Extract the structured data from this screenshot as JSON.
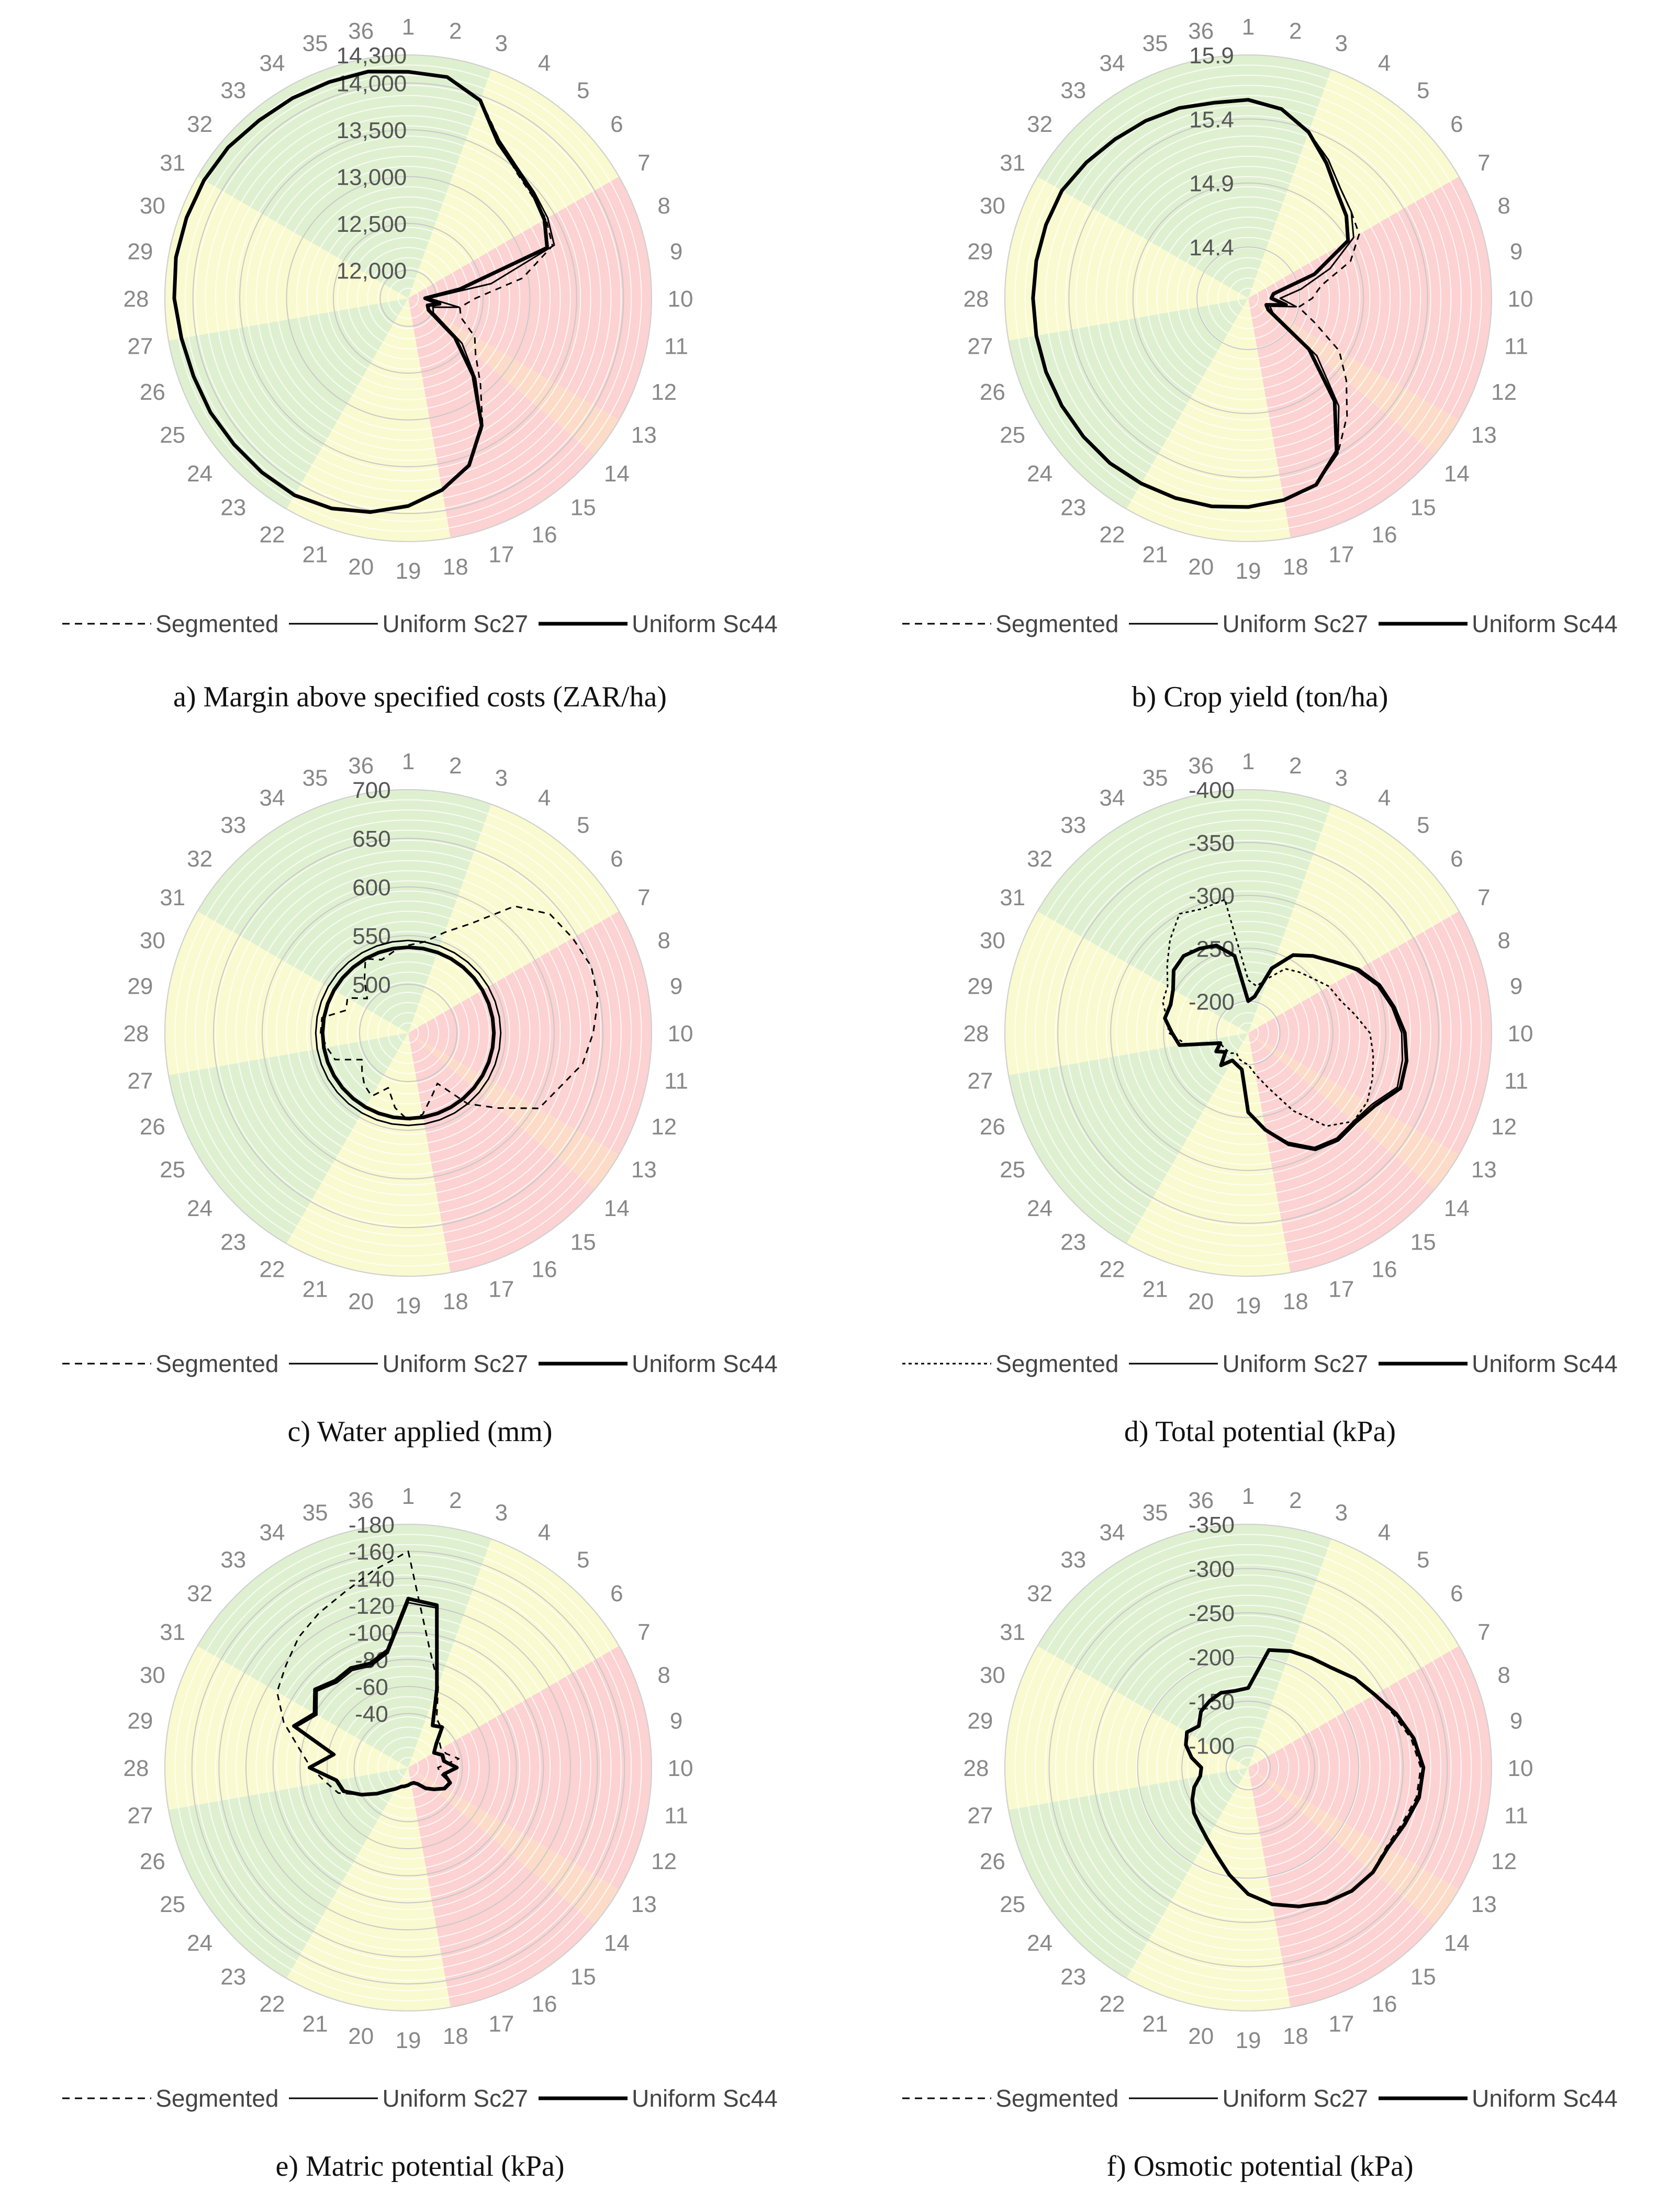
{
  "legend": [
    "Segmented",
    "Uniform Sc27",
    "Uniform Sc44"
  ],
  "sector_labels": [
    "1",
    "2",
    "3",
    "4",
    "5",
    "6",
    "7",
    "8",
    "9",
    "10",
    "11",
    "12",
    "13",
    "14",
    "15",
    "16",
    "17",
    "18",
    "19",
    "20",
    "21",
    "22",
    "23",
    "24",
    "25",
    "26",
    "27",
    "28",
    "29",
    "30",
    "31",
    "32",
    "33",
    "34",
    "35",
    "36"
  ],
  "sector_class": [
    "g",
    "g",
    "y",
    "y",
    "y",
    "y",
    "r",
    "r",
    "r",
    "r",
    "r",
    "r",
    "o",
    "r",
    "r",
    "r",
    "r",
    "y",
    "y",
    "y",
    "y",
    "g",
    "g",
    "g",
    "g",
    "g",
    "y",
    "y",
    "y",
    "y",
    "g",
    "g",
    "g",
    "g",
    "g",
    "g"
  ],
  "colors": {
    "g": "#dff0d0",
    "y": "#fafad0",
    "o": "#fcdcc8",
    "r": "#fcd2d2",
    "grid": "#c8c8c8",
    "line": "#000000"
  },
  "chart_data": [
    {
      "type": "radar",
      "caption": "a) Margin above specified costs (ZAR/ha)",
      "rmin": 11700,
      "rmax": 14300,
      "ticks": [
        12000,
        12500,
        13000,
        13500,
        14000,
        14300
      ],
      "tick_labels": [
        "12,000",
        "12,500",
        "13,000",
        "13,500",
        "14,000",
        "14,300"
      ],
      "series": [
        {
          "name": "Segmented",
          "values": [
            14120,
            14100,
            13960,
            13650,
            13480,
            13420,
            13400,
            13340,
            12940,
            12420,
            12260,
            12300,
            12520,
            12640,
            12900,
            13290,
            13600,
            13780,
            13910,
            14010,
            14090,
            14120,
            14120,
            14120,
            14130,
            14140,
            14160,
            14200,
            14220,
            14220,
            14220,
            14210,
            14180,
            14160,
            14160,
            14160
          ]
        },
        {
          "name": "Uniform Sc27",
          "values": [
            14120,
            14100,
            13950,
            13650,
            13520,
            13460,
            13420,
            13360,
            12600,
            11920,
            12250,
            11980,
            12010,
            12450,
            12820,
            13280,
            13600,
            13780,
            13920,
            14020,
            14090,
            14130,
            14130,
            14130,
            14140,
            14140,
            14160,
            14200,
            14220,
            14220,
            14220,
            14210,
            14180,
            14170,
            14160,
            14160
          ]
        },
        {
          "name": "Uniform Sc44",
          "values": [
            14120,
            14100,
            13950,
            13620,
            13500,
            13440,
            13380,
            13280,
            12260,
            11880,
            12040,
            11920,
            11950,
            12350,
            12780,
            13270,
            13600,
            13780,
            13920,
            14020,
            14090,
            14130,
            14130,
            14130,
            14140,
            14140,
            14160,
            14200,
            14220,
            14220,
            14220,
            14210,
            14180,
            14170,
            14160,
            14160
          ]
        }
      ]
    },
    {
      "type": "radar",
      "caption": "b) Crop yield (ton/ha)",
      "rmin": 14.0,
      "rmax": 15.9,
      "ticks": [
        14.4,
        14.9,
        15.4,
        15.9
      ],
      "tick_labels": [
        "14.4",
        "14.9",
        "15.4",
        "15.9"
      ],
      "series": [
        {
          "name": "Segmented",
          "values": [
            15.55,
            15.5,
            15.38,
            15.25,
            15.12,
            15.05,
            15.0,
            14.85,
            14.58,
            14.5,
            14.4,
            14.55,
            14.82,
            15.0,
            15.2,
            15.4,
            15.55,
            15.6,
            15.63,
            15.65,
            15.66,
            15.67,
            15.68,
            15.68,
            15.68,
            15.68,
            15.68,
            15.68,
            15.68,
            15.68,
            15.68,
            15.65,
            15.62,
            15.6,
            15.58,
            15.55
          ]
        },
        {
          "name": "Uniform Sc27",
          "values": [
            15.55,
            15.5,
            15.38,
            15.25,
            15.12,
            15.05,
            14.95,
            14.68,
            14.42,
            14.25,
            14.38,
            14.18,
            14.22,
            14.7,
            15.1,
            15.4,
            15.55,
            15.6,
            15.63,
            15.65,
            15.66,
            15.67,
            15.68,
            15.68,
            15.68,
            15.68,
            15.68,
            15.68,
            15.68,
            15.68,
            15.68,
            15.65,
            15.62,
            15.6,
            15.58,
            15.55
          ]
        },
        {
          "name": "Uniform Sc44",
          "values": [
            15.55,
            15.5,
            15.38,
            15.22,
            15.08,
            15.0,
            14.9,
            14.55,
            14.2,
            14.18,
            14.3,
            14.15,
            14.18,
            14.62,
            15.05,
            15.38,
            15.55,
            15.6,
            15.63,
            15.65,
            15.66,
            15.67,
            15.68,
            15.68,
            15.68,
            15.68,
            15.68,
            15.68,
            15.68,
            15.68,
            15.68,
            15.65,
            15.62,
            15.6,
            15.58,
            15.55
          ]
        }
      ]
    },
    {
      "type": "radar",
      "caption": "c) Water applied (mm)",
      "rmin": 450,
      "rmax": 700,
      "ticks": [
        500,
        550,
        600,
        650,
        700
      ],
      "tick_labels": [
        "500",
        "550",
        "600",
        "650",
        "700"
      ],
      "series": [
        {
          "name": "Segmented",
          "values": [
            540,
            545,
            560,
            580,
            620,
            640,
            645,
            650,
            648,
            640,
            632,
            615,
            605,
            570,
            545,
            510,
            520,
            535,
            540,
            528,
            510,
            525,
            520,
            512,
            505,
            530,
            535,
            540,
            540,
            518,
            522,
            505,
            520,
            538,
            530,
            535
          ]
        },
        {
          "name": "Uniform Sc27",
          "values": [
            545,
            545,
            545,
            545,
            545,
            545,
            545,
            545,
            545,
            545,
            545,
            545,
            545,
            545,
            545,
            545,
            545,
            545,
            545,
            545,
            545,
            545,
            545,
            545,
            545,
            545,
            545,
            545,
            545,
            545,
            545,
            545,
            545,
            545,
            545,
            545
          ]
        },
        {
          "name": "Uniform Sc44",
          "values": [
            538,
            538,
            538,
            538,
            538,
            538,
            538,
            538,
            538,
            538,
            538,
            538,
            538,
            538,
            538,
            538,
            538,
            538,
            538,
            538,
            538,
            538,
            538,
            538,
            538,
            538,
            538,
            538,
            538,
            538,
            538,
            538,
            538,
            538,
            538,
            538
          ]
        }
      ]
    },
    {
      "type": "radar",
      "caption": "d) Total potential (kPa)",
      "rmin": -170,
      "rmax": -400,
      "ticks": [
        -200,
        -250,
        -300,
        -350,
        -400
      ],
      "tick_labels": [
        "-200",
        "-250",
        "-300",
        "-350",
        "-400"
      ],
      "series": [
        {
          "name": "Segmented",
          "values": [
            -220,
            -215,
            -225,
            -240,
            -245,
            -250,
            -258,
            -262,
            -272,
            -285,
            -290,
            -295,
            -300,
            -300,
            -285,
            -255,
            -225,
            -210,
            -200,
            -198,
            -196,
            -192,
            -195,
            -196,
            -197,
            -198,
            -230,
            -245,
            -248,
            -256,
            -258,
            -270,
            -285,
            -300,
            -295,
            -298
          ]
        },
        {
          "name": "Uniform Sc27",
          "values": [
            -200,
            -205,
            -235,
            -255,
            -265,
            -275,
            -288,
            -300,
            -308,
            -315,
            -318,
            -320,
            -305,
            -300,
            -300,
            -295,
            -280,
            -262,
            -245,
            -205,
            -202,
            -200,
            -210,
            -198,
            -205,
            -198,
            -236,
            -242,
            -250,
            -248,
            -252,
            -262,
            -265,
            -262,
            -258,
            -244
          ]
        },
        {
          "name": "Uniform Sc44",
          "values": [
            -200,
            -205,
            -235,
            -255,
            -265,
            -275,
            -290,
            -302,
            -310,
            -318,
            -322,
            -323,
            -308,
            -302,
            -302,
            -297,
            -282,
            -263,
            -245,
            -205,
            -202,
            -200,
            -210,
            -198,
            -205,
            -198,
            -236,
            -242,
            -250,
            -248,
            -252,
            -262,
            -265,
            -262,
            -258,
            -244
          ]
        }
      ]
    },
    {
      "type": "radar",
      "caption": "e) Matric potential (kPa)",
      "rmin": 0,
      "rmax": -180,
      "ticks": [
        -40,
        -60,
        -80,
        -100,
        -120,
        -140,
        -160,
        -180
      ],
      "tick_labels": [
        "-40",
        "-60",
        "-80",
        "-100",
        "-120",
        "-140",
        "-160",
        "-180"
      ],
      "series": [
        {
          "name": "Segmented",
          "values": [
            -160,
            -90,
            -65,
            -42,
            -38,
            -30,
            -28,
            -30,
            -38,
            -22,
            -24,
            -33,
            -30,
            -25,
            -20,
            -14,
            -12,
            -12,
            -13,
            -14,
            -15,
            -18,
            -22,
            -30,
            -40,
            -55,
            -62,
            -72,
            -82,
            -98,
            -112,
            -118,
            -126,
            -132,
            -138,
            -148
          ]
        },
        {
          "name": "Uniform Sc27",
          "values": [
            -122,
            -120,
            -60,
            -36,
            -38,
            -26,
            -22,
            -26,
            -26,
            -35,
            -26,
            -32,
            -30,
            -25,
            -20,
            -14,
            -12,
            -12,
            -13,
            -14,
            -15,
            -18,
            -22,
            -30,
            -40,
            -50,
            -53,
            -72,
            -55,
            -88,
            -78,
            -88,
            -82,
            -83,
            -80,
            -86
          ]
        },
        {
          "name": "Uniform Sc44",
          "values": [
            -125,
            -122,
            -62,
            -36,
            -39,
            -27,
            -22,
            -27,
            -27,
            -36,
            -27,
            -33,
            -31,
            -25,
            -20,
            -14,
            -12,
            -12,
            -13,
            -14,
            -15,
            -18,
            -22,
            -30,
            -40,
            -51,
            -54,
            -73,
            -56,
            -90,
            -80,
            -90,
            -84,
            -85,
            -82,
            -88
          ]
        }
      ]
    },
    {
      "type": "radar",
      "caption": "f) Osmotic potential (kPa)",
      "rmin": -75,
      "rmax": -350,
      "ticks": [
        -100,
        -150,
        -200,
        -250,
        -300,
        -350
      ],
      "tick_labels": [
        "-100",
        "-150",
        "-200",
        "-250",
        "-300",
        "-350"
      ],
      "series": [
        {
          "name": "Segmented",
          "values": [
            -165,
            -210,
            -215,
            -218,
            -222,
            -232,
            -240,
            -250,
            -262,
            -270,
            -268,
            -260,
            -255,
            -258,
            -256,
            -250,
            -242,
            -232,
            -218,
            -198,
            -180,
            -168,
            -160,
            -155,
            -148,
            -140,
            -130,
            -128,
            -140,
            -150,
            -155,
            -148,
            -158,
            -162,
            -165,
            -163
          ]
        },
        {
          "name": "Uniform Sc27",
          "values": [
            -165,
            -210,
            -215,
            -218,
            -222,
            -232,
            -240,
            -252,
            -264,
            -272,
            -270,
            -262,
            -256,
            -258,
            -256,
            -250,
            -242,
            -232,
            -218,
            -198,
            -180,
            -168,
            -160,
            -155,
            -148,
            -140,
            -130,
            -128,
            -140,
            -150,
            -155,
            -148,
            -158,
            -162,
            -165,
            -163
          ]
        },
        {
          "name": "Uniform Sc44",
          "values": [
            -165,
            -210,
            -215,
            -218,
            -222,
            -232,
            -240,
            -253,
            -265,
            -273,
            -271,
            -263,
            -257,
            -259,
            -257,
            -251,
            -242,
            -232,
            -218,
            -198,
            -180,
            -168,
            -160,
            -155,
            -148,
            -140,
            -130,
            -128,
            -140,
            -150,
            -155,
            -148,
            -158,
            -162,
            -165,
            -163
          ]
        }
      ]
    }
  ]
}
